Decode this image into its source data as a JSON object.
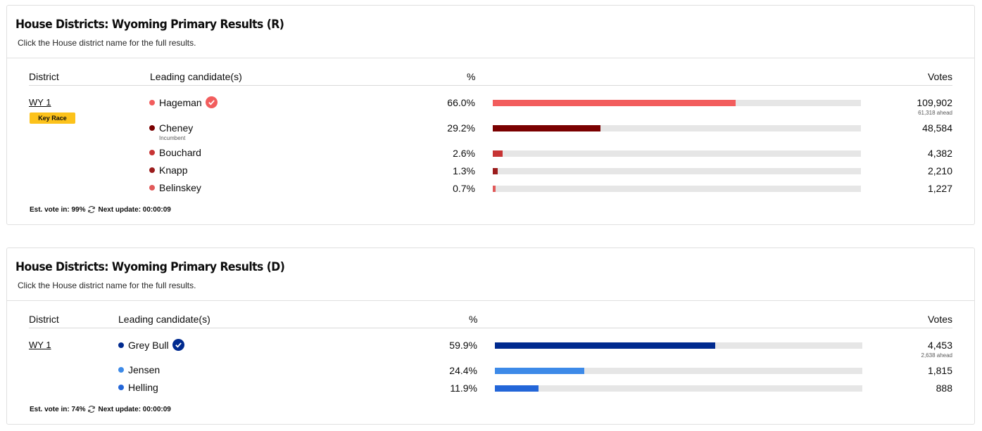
{
  "colors": {
    "rep_winner": "#f25d5d",
    "rep_incumbent": "#7a0000",
    "rep_other": "#c73434",
    "rep_dot_knapp": "#9b1c1c",
    "rep_dot_belinskey": "#e15a5a",
    "dem_winner": "#002a8f",
    "dem_light": "#3d8ae8",
    "dem_mid": "#2366d8",
    "key_race": "#fcc21b",
    "track": "#e6e6e6"
  },
  "sections": [
    {
      "title": "House Districts: Wyoming Primary Results (R)",
      "subtitle": "Click the House district name for the full results.",
      "headers": {
        "district": "District",
        "candidate": "Leading candidate(s)",
        "pct": "%",
        "votes": "Votes"
      },
      "district": "WY 1",
      "badge": "Key Race",
      "candidates": [
        {
          "name": "Hageman",
          "pct_text": "66.0%",
          "pct": 66.0,
          "votes": "109,902",
          "ahead": "61,318 ahead",
          "winner": true,
          "color": "#f25d5d"
        },
        {
          "name": "Cheney",
          "note": "Incumbent",
          "pct_text": "29.2%",
          "pct": 29.2,
          "votes": "48,584",
          "color": "#7a0000"
        },
        {
          "name": "Bouchard",
          "pct_text": "2.6%",
          "pct": 2.6,
          "votes": "4,382",
          "color": "#c73434"
        },
        {
          "name": "Knapp",
          "pct_text": "1.3%",
          "pct": 1.3,
          "votes": "2,210",
          "color": "#9b1c1c"
        },
        {
          "name": "Belinskey",
          "pct_text": "0.7%",
          "pct": 0.7,
          "votes": "1,227",
          "color": "#e15a5a"
        }
      ],
      "footer": {
        "est_label": "Est. vote in: 99%",
        "next_label": "Next update: 00:00:09"
      }
    },
    {
      "title": "House Districts: Wyoming Primary Results (D)",
      "subtitle": "Click the House district name for the full results.",
      "headers": {
        "district": "District",
        "candidate": "Leading candidate(s)",
        "pct": "%",
        "votes": "Votes"
      },
      "district": "WY 1",
      "candidates": [
        {
          "name": "Grey Bull",
          "pct_text": "59.9%",
          "pct": 59.9,
          "votes": "4,453",
          "ahead": "2,638 ahead",
          "winner": true,
          "color": "#002a8f"
        },
        {
          "name": "Jensen",
          "pct_text": "24.4%",
          "pct": 24.4,
          "votes": "1,815",
          "color": "#3d8ae8"
        },
        {
          "name": "Helling",
          "pct_text": "11.9%",
          "pct": 11.9,
          "votes": "888",
          "color": "#2366d8"
        }
      ],
      "footer": {
        "est_label": "Est. vote in: 74%",
        "next_label": "Next update: 00:00:09"
      }
    }
  ]
}
